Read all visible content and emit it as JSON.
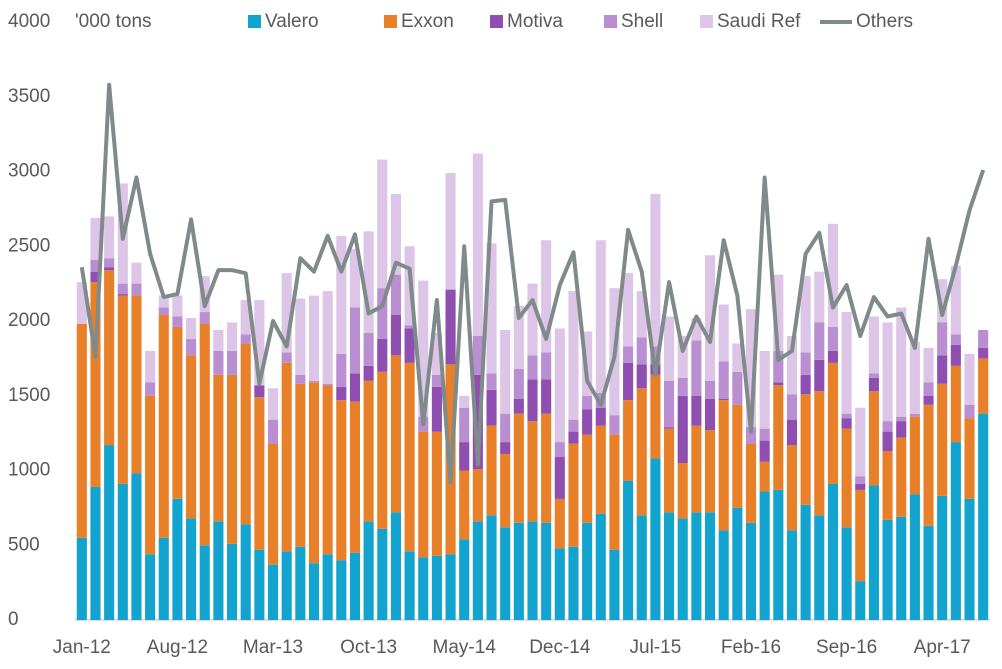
{
  "chart_data": {
    "type": "stacked-bar-line",
    "unit_label": "'000 tons",
    "categories": [
      "Jan-12",
      null,
      null,
      null,
      null,
      null,
      null,
      "Aug-12",
      null,
      null,
      null,
      null,
      null,
      null,
      "Mar-13",
      null,
      null,
      null,
      null,
      null,
      null,
      "Oct-13",
      null,
      null,
      null,
      null,
      null,
      null,
      "May-14",
      null,
      null,
      null,
      null,
      null,
      null,
      "Dec-14",
      null,
      null,
      null,
      null,
      null,
      null,
      "Jul-15",
      null,
      null,
      null,
      null,
      null,
      null,
      "Feb-16",
      null,
      null,
      null,
      null,
      null,
      null,
      "Sep-16",
      null,
      null,
      null,
      null,
      null,
      null,
      "Apr-17",
      null,
      null,
      null
    ],
    "ylim": [
      0,
      4000
    ],
    "yticks": [
      0,
      500,
      1000,
      1500,
      2000,
      2500,
      3000,
      3500,
      4000
    ],
    "grid": false,
    "series": [
      {
        "name": "Valero",
        "color": "#12a3cf",
        "kind": "bar",
        "values": [
          550,
          890,
          1170,
          910,
          980,
          440,
          550,
          810,
          680,
          500,
          660,
          510,
          640,
          470,
          370,
          460,
          490,
          380,
          440,
          400,
          450,
          660,
          610,
          720,
          460,
          420,
          430,
          440,
          540,
          660,
          700,
          620,
          650,
          660,
          650,
          480,
          490,
          650,
          710,
          470,
          930,
          700,
          1080,
          720,
          680,
          720,
          720,
          600,
          750,
          650,
          860,
          870,
          600,
          770,
          700,
          910,
          620,
          260,
          900,
          670,
          690,
          840,
          630,
          830,
          1190,
          810,
          1380
        ]
      },
      {
        "name": "Exxon",
        "color": "#e8802a",
        "kind": "bar",
        "values": [
          1430,
          1370,
          1170,
          1260,
          1190,
          1060,
          1490,
          1150,
          1090,
          1480,
          980,
          1130,
          1210,
          1020,
          810,
          1260,
          1090,
          1210,
          1130,
          1070,
          1010,
          940,
          1050,
          1050,
          1260,
          840,
          830,
          1270,
          460,
          350,
          600,
          490,
          730,
          670,
          730,
          330,
          690,
          590,
          590,
          770,
          540,
          850,
          560,
          560,
          370,
          580,
          550,
          870,
          690,
          530,
          200,
          700,
          570,
          740,
          830,
          810,
          660,
          610,
          630,
          460,
          530,
          520,
          810,
          750,
          510,
          540,
          370
        ]
      },
      {
        "name": "Motiva",
        "color": "#8e4fb0",
        "kind": "bar",
        "values": [
          0,
          70,
          20,
          10,
          0,
          0,
          0,
          0,
          0,
          0,
          0,
          0,
          0,
          80,
          0,
          0,
          0,
          0,
          0,
          90,
          190,
          100,
          220,
          270,
          230,
          0,
          300,
          500,
          190,
          630,
          240,
          80,
          100,
          280,
          230,
          280,
          80,
          170,
          120,
          0,
          250,
          160,
          70,
          10,
          450,
          200,
          210,
          10,
          0,
          0,
          140,
          20,
          170,
          130,
          210,
          80,
          70,
          40,
          90,
          130,
          110,
          0,
          60,
          190,
          140,
          0,
          70
        ]
      },
      {
        "name": "Shell",
        "color": "#b98fd1",
        "kind": "bar",
        "values": [
          0,
          80,
          60,
          70,
          80,
          90,
          50,
          70,
          110,
          80,
          160,
          160,
          60,
          0,
          160,
          70,
          60,
          10,
          10,
          220,
          440,
          220,
          340,
          270,
          20,
          100,
          80,
          0,
          230,
          260,
          110,
          190,
          200,
          160,
          180,
          100,
          80,
          90,
          100,
          130,
          110,
          180,
          120,
          310,
          120,
          370,
          120,
          250,
          220,
          110,
          80,
          210,
          170,
          150,
          250,
          160,
          30,
          50,
          30,
          70,
          30,
          20,
          90,
          220,
          70,
          90,
          120
        ]
      },
      {
        "name": "Saudi Ref",
        "color": "#dcc5e6",
        "kind": "bar",
        "values": [
          280,
          280,
          280,
          670,
          140,
          210,
          80,
          140,
          140,
          240,
          140,
          190,
          230,
          570,
          210,
          530,
          510,
          570,
          620,
          790,
          390,
          680,
          860,
          540,
          530,
          910,
          280,
          780,
          80,
          1220,
          870,
          560,
          420,
          480,
          750,
          760,
          860,
          430,
          1020,
          850,
          490,
          310,
          1020,
          430,
          280,
          150,
          840,
          380,
          190,
          790,
          520,
          510,
          390,
          510,
          340,
          690,
          680,
          460,
          380,
          660,
          730,
          480,
          230,
          290,
          460,
          340,
          0
        ]
      },
      {
        "name": "Others",
        "color": "#7f8a8b",
        "kind": "line",
        "values": [
          2360,
          1760,
          3580,
          2550,
          2960,
          2450,
          2160,
          2180,
          2680,
          2100,
          2340,
          2340,
          2320,
          1580,
          2000,
          1830,
          2420,
          2330,
          2570,
          2330,
          2580,
          2050,
          2100,
          2390,
          2350,
          1310,
          2140,
          920,
          2500,
          1040,
          2800,
          2810,
          2020,
          2140,
          1880,
          2240,
          2460,
          1600,
          1440,
          1760,
          2610,
          2330,
          1640,
          2260,
          1800,
          2030,
          1860,
          2540,
          2170,
          1260,
          2960,
          1740,
          1800,
          2450,
          2590,
          2090,
          2240,
          1900,
          2160,
          2030,
          2050,
          1820,
          2550,
          2040,
          2370,
          2740,
          3010
        ]
      }
    ]
  }
}
